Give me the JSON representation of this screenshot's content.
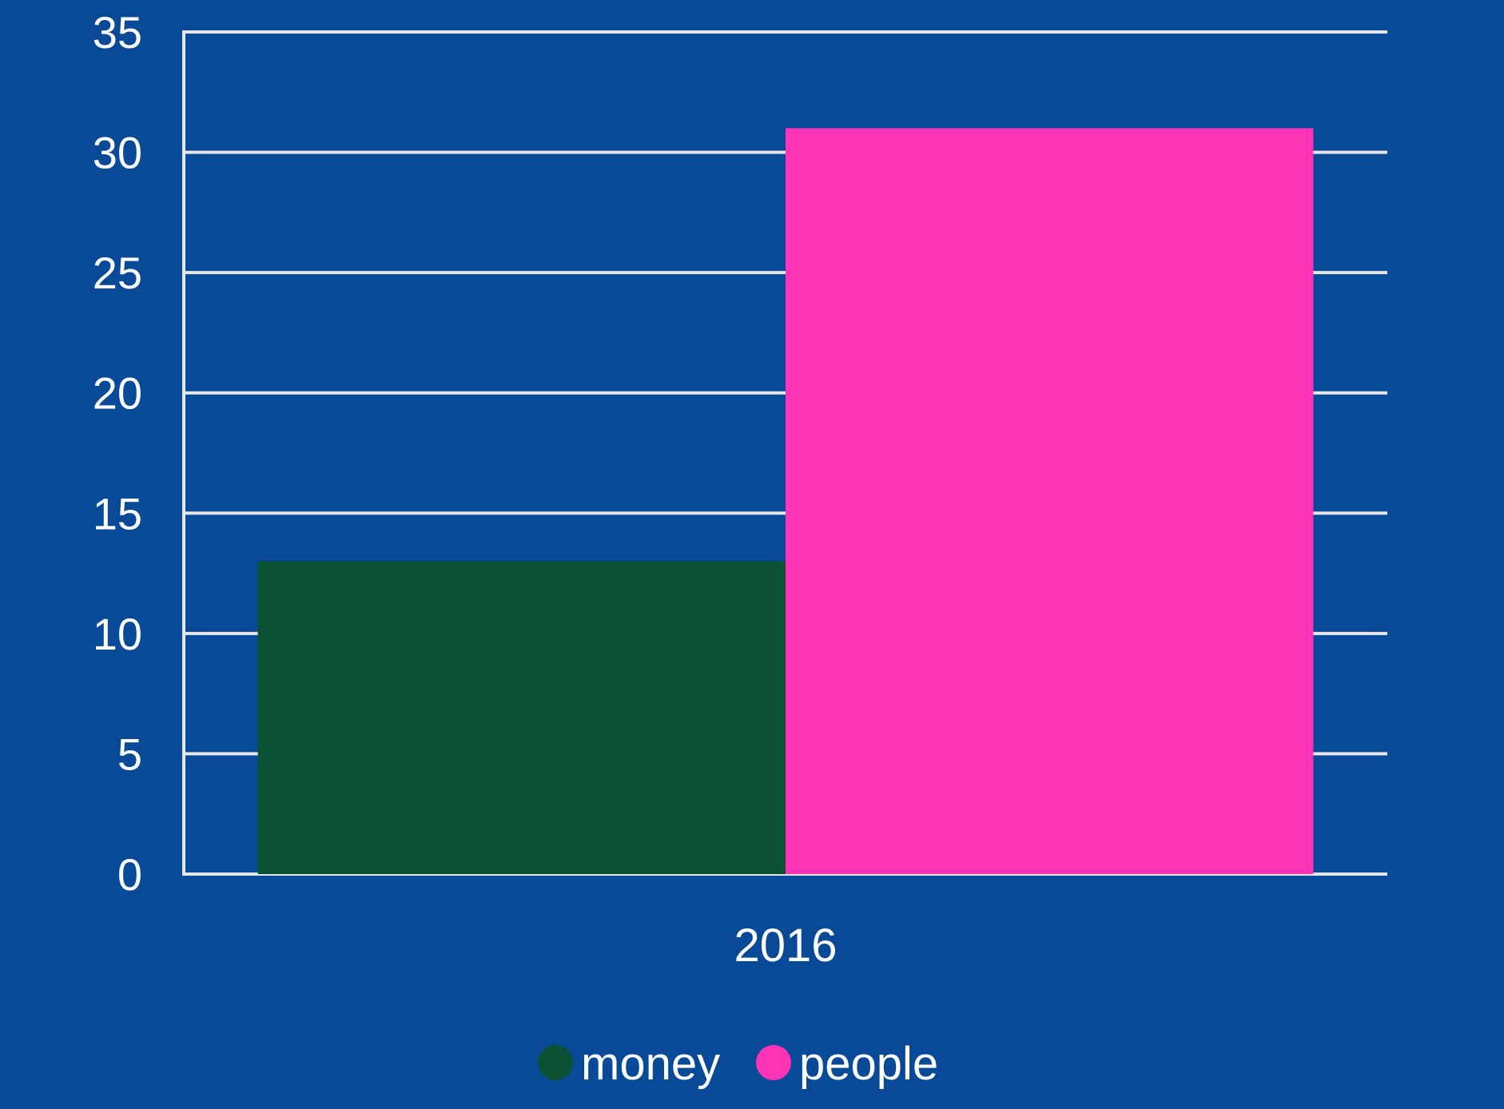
{
  "chart_data": {
    "type": "bar",
    "categories": [
      "2016"
    ],
    "series": [
      {
        "name": "money",
        "values": [
          13
        ],
        "color": "#0A5233"
      },
      {
        "name": "people",
        "values": [
          31
        ],
        "color": "#FF33B5"
      }
    ],
    "y_ticks": [
      "0",
      "5",
      "10",
      "15",
      "20",
      "25",
      "30",
      "35"
    ],
    "ylim": [
      0,
      35
    ],
    "grid": true,
    "legend": "bottom-center",
    "background": "#094A98",
    "gridline_color": "#E6E6E6"
  }
}
